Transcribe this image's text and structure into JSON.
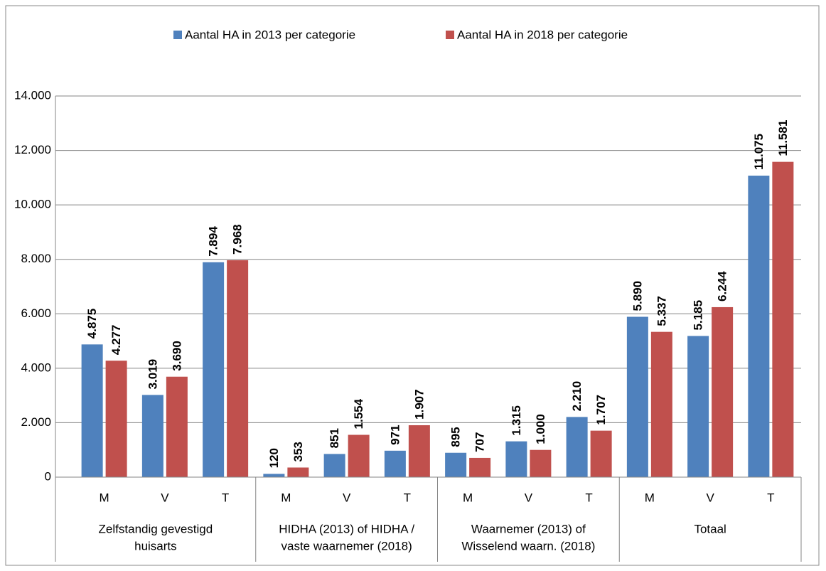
{
  "chart_data": {
    "type": "bar",
    "groups": [
      {
        "label": [
          "Zelfstandig gevestigd",
          "huisarts"
        ],
        "categories": [
          "M",
          "V",
          "T"
        ]
      },
      {
        "label": [
          "HIDHA (2013) of HIDHA /",
          "vaste waarnemer (2018)"
        ],
        "categories": [
          "M",
          "V",
          "T"
        ]
      },
      {
        "label": [
          "Waarnemer (2013) of",
          "Wisselend waarn. (2018)"
        ],
        "categories": [
          "M",
          "V",
          "T"
        ]
      },
      {
        "label": [
          "Totaal"
        ],
        "categories": [
          "M",
          "V",
          "T"
        ]
      }
    ],
    "series": [
      {
        "name": "Aantal HA in 2013 per categorie",
        "color": "#4f81bd",
        "values": [
          4875,
          3019,
          7894,
          120,
          851,
          971,
          895,
          1315,
          2210,
          5890,
          5185,
          11075
        ],
        "value_labels": [
          "4.875",
          "3.019",
          "7.894",
          "120",
          "851",
          "971",
          "895",
          "1.315",
          "2.210",
          "5.890",
          "5.185",
          "11.075"
        ]
      },
      {
        "name": "Aantal HA in 2018 per categorie",
        "color": "#c0504d",
        "values": [
          4277,
          3690,
          7968,
          353,
          1554,
          1907,
          707,
          1000,
          1707,
          5337,
          6244,
          11581
        ],
        "value_labels": [
          "4.277",
          "3.690",
          "7.968",
          "353",
          "1.554",
          "1.907",
          "707",
          "1.000",
          "1.707",
          "5.337",
          "6.244",
          "11.581"
        ]
      }
    ],
    "ylim": [
      0,
      14000
    ],
    "yticks": [
      0,
      {
        "value": 2000,
        "label": "2.000"
      },
      {
        "value": 4000,
        "label": "4.000"
      },
      {
        "value": 6000,
        "label": "6.000"
      },
      {
        "value": 8000,
        "label": "8.000"
      },
      {
        "value": 10000,
        "label": "10.000"
      },
      {
        "value": 12000,
        "label": "12.000"
      },
      {
        "value": 14000,
        "label": "14.000"
      }
    ],
    "grid": true,
    "legend": "top"
  }
}
